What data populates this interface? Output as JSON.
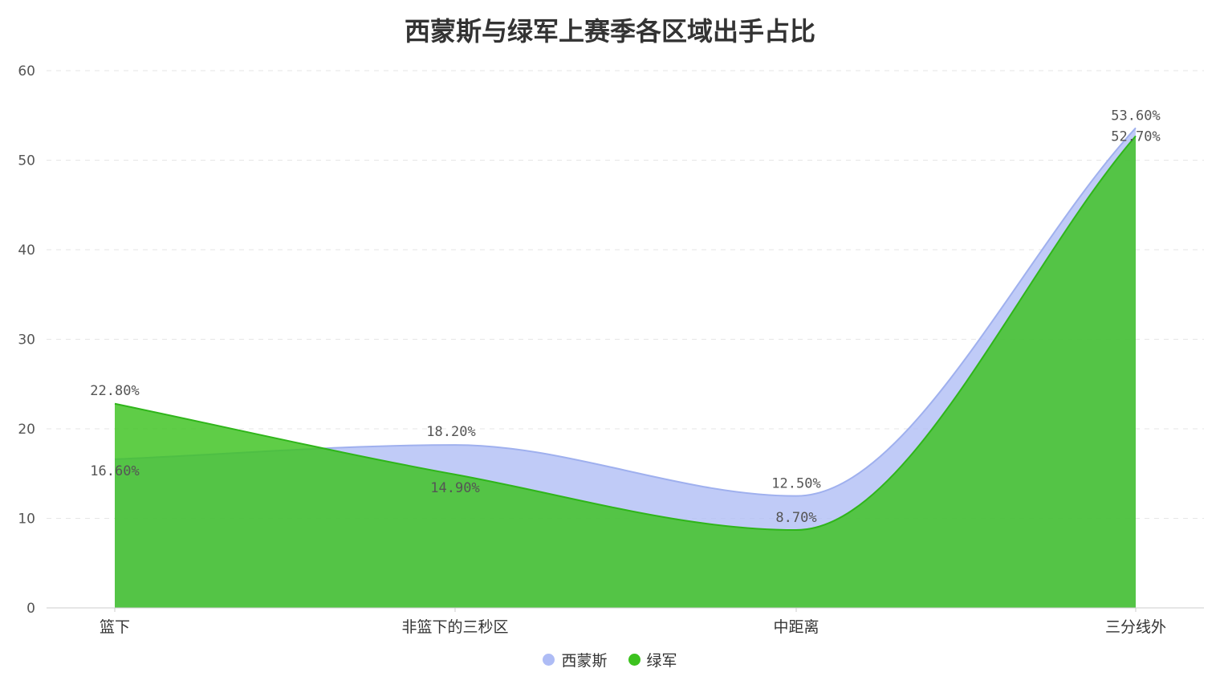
{
  "chart_data": {
    "type": "area",
    "title": "西蒙斯与绿军上赛季各区域出手占比",
    "categories": [
      "篮下",
      "非篮下的三秒区",
      "中距离",
      "三分线外"
    ],
    "series": [
      {
        "name": "西蒙斯",
        "values": [
          16.6,
          18.2,
          12.5,
          53.6
        ],
        "labels": [
          "16.60%",
          "18.20%",
          "12.50%",
          "53.60%"
        ],
        "color": "#aebcf5"
      },
      {
        "name": "绿军",
        "values": [
          22.8,
          14.9,
          8.7,
          52.7
        ],
        "labels": [
          "22.80%",
          "14.90%",
          "8.70%",
          "52.70%"
        ],
        "color": "#3cc21e"
      }
    ],
    "yticks": [
      "0",
      "10",
      "20",
      "30",
      "40",
      "50",
      "60"
    ],
    "ylim": [
      0,
      60
    ],
    "grid": true,
    "legend_position": "bottom"
  }
}
